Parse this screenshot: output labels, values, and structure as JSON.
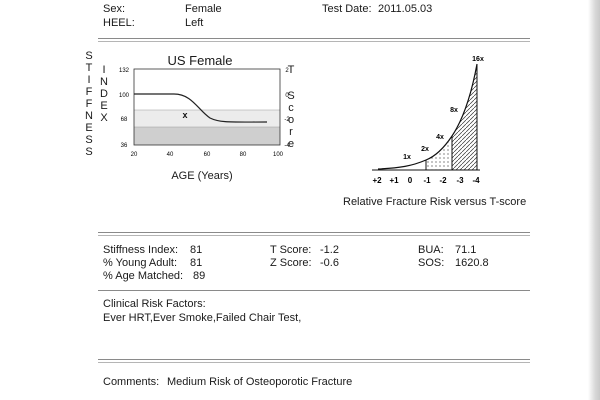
{
  "header": {
    "sex_label": "Sex:",
    "sex_value": "Female",
    "heel_label": "HEEL:",
    "heel_value": "Left",
    "test_date_label": "Test Date:",
    "test_date_value": "2011.05.03"
  },
  "graph": {
    "title": "US Female",
    "left_axis_vertical_1": "STIFFNESS",
    "left_axis_vertical_2": "INDEX",
    "right_axis_vertical_1": "T",
    "right_axis_vertical_2": "Score",
    "y_ticks_left": [
      "132",
      "100",
      "68",
      "36"
    ],
    "y_ticks_right": [
      "2",
      "0",
      "-2",
      "-4"
    ],
    "x_ticks": [
      "20",
      "40",
      "60",
      "80",
      "100"
    ],
    "x_label": "AGE (Years)",
    "marker": "x"
  },
  "risk_chart": {
    "caption": "Relative Fracture Risk versus T-score",
    "risk_labels": [
      "1x",
      "2x",
      "4x",
      "8x",
      "16x"
    ],
    "x_ticks": [
      "+2",
      "+1",
      "0",
      "-1",
      "-2",
      "-3",
      "-4"
    ]
  },
  "results": {
    "stiffness_index_label": "Stiffness Index:",
    "stiffness_index_value": "81",
    "young_adult_label": "% Young Adult:",
    "young_adult_value": "81",
    "age_matched_label": "% Age Matched:",
    "age_matched_value": "89",
    "t_score_label": "T Score:",
    "t_score_value": "-1.2",
    "z_score_label": "Z Score:",
    "z_score_value": "-0.6",
    "bua_label": "BUA:",
    "bua_value": "71.1",
    "sos_label": "SOS:",
    "sos_value": "1620.8"
  },
  "clinical": {
    "title": "Clinical Risk Factors:",
    "value": "Ever HRT,Ever Smoke,Failed Chair Test,"
  },
  "comments": {
    "label": "Comments:",
    "value": "Medium Risk of Osteoporotic Fracture"
  }
}
